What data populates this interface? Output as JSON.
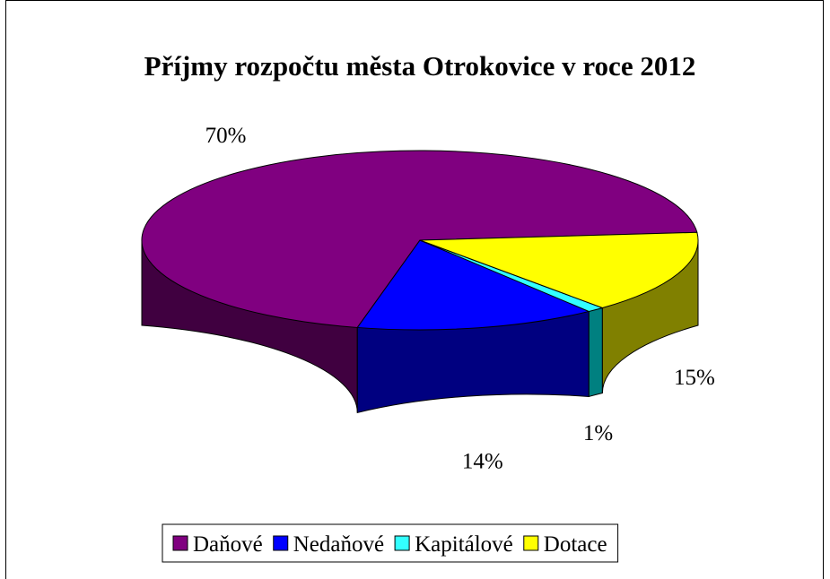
{
  "chart_data": {
    "type": "pie",
    "style": "3d",
    "title": "Příjmy rozpočtu města Otrokovice v roce 2012",
    "categories": [
      "Daňové",
      "Nedaňové",
      "Kapitálové",
      "Dotace"
    ],
    "values": [
      70,
      14,
      1,
      15
    ],
    "data_labels": [
      "70%",
      "14%",
      "1%",
      "15%"
    ],
    "colors": [
      "#800080",
      "#0000FF",
      "#33FFFF",
      "#FFFF00"
    ],
    "side_colors": [
      "#400040",
      "#000080",
      "#008080",
      "#808000"
    ],
    "legend": {
      "position": "bottom"
    }
  }
}
